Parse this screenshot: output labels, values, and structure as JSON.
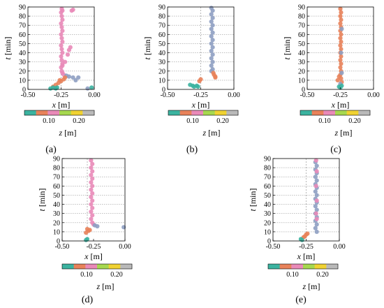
{
  "figure": {
    "colorbar": {
      "label": "z [m]",
      "ticks": [
        "0.10",
        "0.20"
      ],
      "colors": [
        "#3bb3a0",
        "#e8825a",
        "#e98ab8",
        "#a6d84f",
        "#f0d232",
        "#b9b9b9"
      ]
    },
    "x_axis_label": "x [m]",
    "y_axis_label": "t [min]"
  },
  "chart_data": [
    {
      "type": "scatter",
      "panel_label": "(a)",
      "xlabel": "x [m]",
      "ylabel": "t [min]",
      "xlim": [
        -0.5,
        0.0
      ],
      "ylim": [
        0,
        90
      ],
      "xticks": [
        "-0.50",
        "-0.25",
        "0.00"
      ],
      "yticks": [
        "0",
        "10",
        "20",
        "30",
        "40",
        "50",
        "60",
        "70",
        "80",
        "90"
      ],
      "grid": "horizontal dotted",
      "dashed_vline_x": -0.25,
      "series": [
        {
          "color": "#e98ab8",
          "points": [
            [
              -0.245,
              88
            ],
            [
              -0.24,
              86
            ],
            [
              -0.25,
              84
            ],
            [
              -0.245,
              80
            ],
            [
              -0.24,
              76
            ],
            [
              -0.25,
              72
            ],
            [
              -0.245,
              68
            ],
            [
              -0.24,
              64
            ],
            [
              -0.25,
              60
            ],
            [
              -0.245,
              56
            ],
            [
              -0.24,
              52
            ],
            [
              -0.25,
              48
            ],
            [
              -0.245,
              44
            ],
            [
              -0.24,
              40
            ],
            [
              -0.25,
              36
            ],
            [
              -0.245,
              32
            ],
            [
              -0.24,
              28
            ],
            [
              -0.25,
              24
            ],
            [
              -0.245,
              20
            ],
            [
              -0.24,
              18
            ],
            [
              -0.23,
              16
            ],
            [
              -0.16,
              87
            ],
            [
              -0.17,
              86
            ],
            [
              -0.18,
              46
            ],
            [
              -0.19,
              43
            ],
            [
              -0.2,
              38
            ],
            [
              -0.22,
              30
            ],
            [
              -0.24,
              26
            ]
          ]
        },
        {
          "color": "#8e9ec2",
          "points": [
            [
              -0.21,
              15
            ],
            [
              -0.19,
              14
            ],
            [
              -0.16,
              13
            ],
            [
              -0.12,
              13
            ],
            [
              -0.14,
              10
            ],
            [
              -0.05,
              1
            ]
          ]
        },
        {
          "color": "#e8825a",
          "points": [
            [
              -0.31,
              3
            ],
            [
              -0.29,
              5
            ],
            [
              -0.27,
              7
            ],
            [
              -0.25,
              9
            ],
            [
              -0.23,
              11
            ],
            [
              -0.22,
              13
            ],
            [
              -0.26,
              10
            ]
          ]
        },
        {
          "color": "#3bb3a0",
          "points": [
            [
              -0.33,
              1
            ],
            [
              -0.31,
              2
            ],
            [
              -0.29,
              1
            ],
            [
              -0.28,
              2
            ],
            [
              -0.02,
              2
            ]
          ]
        }
      ]
    },
    {
      "type": "scatter",
      "panel_label": "(b)",
      "xlabel": "x [m]",
      "ylabel": "t [min]",
      "xlim": [
        -0.5,
        0.0
      ],
      "ylim": [
        0,
        90
      ],
      "xticks": [
        "-0.50",
        "-0.25",
        "0.00"
      ],
      "yticks": [
        "0",
        "10",
        "20",
        "30",
        "40",
        "50",
        "60",
        "70",
        "80",
        "90"
      ],
      "grid": "horizontal dotted",
      "dashed_vline_x": -0.25,
      "series": [
        {
          "color": "#8e9ec2",
          "points": [
            [
              -0.17,
              89
            ],
            [
              -0.16,
              86
            ],
            [
              -0.17,
              82
            ],
            [
              -0.16,
              78
            ],
            [
              -0.17,
              74
            ],
            [
              -0.16,
              70
            ],
            [
              -0.17,
              66
            ],
            [
              -0.16,
              62
            ],
            [
              -0.17,
              58
            ],
            [
              -0.16,
              54
            ],
            [
              -0.17,
              50
            ],
            [
              -0.16,
              46
            ],
            [
              -0.17,
              42
            ],
            [
              -0.16,
              38
            ],
            [
              -0.17,
              34
            ],
            [
              -0.16,
              30
            ],
            [
              -0.17,
              26
            ],
            [
              -0.16,
              22
            ],
            [
              -0.17,
              20
            ]
          ]
        },
        {
          "color": "#e8825a",
          "points": [
            [
              -0.155,
              18
            ],
            [
              -0.15,
              16
            ],
            [
              -0.14,
              14
            ],
            [
              -0.14,
              13
            ],
            [
              -0.25,
              11
            ],
            [
              -0.26,
              9
            ]
          ]
        },
        {
          "color": "#3bb3a0",
          "points": [
            [
              -0.33,
              5
            ],
            [
              -0.31,
              4
            ],
            [
              -0.3,
              3
            ],
            [
              -0.28,
              4
            ],
            [
              -0.27,
              3
            ]
          ]
        }
      ]
    },
    {
      "type": "scatter",
      "panel_label": "(c)",
      "xlabel": "x [m]",
      "ylabel": "t [min]",
      "xlim": [
        -0.5,
        0.0
      ],
      "ylim": [
        0,
        90
      ],
      "xticks": [
        "-0.50",
        "-0.25",
        "0.00"
      ],
      "yticks": [
        "0",
        "10",
        "20",
        "30",
        "40",
        "50",
        "60",
        "70",
        "80",
        "90"
      ],
      "grid": "horizontal dotted",
      "dashed_vline_x": -0.25,
      "series": [
        {
          "color": "#e8825a",
          "points": [
            [
              -0.25,
              88
            ],
            [
              -0.245,
              84
            ],
            [
              -0.25,
              80
            ],
            [
              -0.245,
              76
            ],
            [
              -0.25,
              72
            ],
            [
              -0.245,
              68
            ],
            [
              -0.25,
              64
            ],
            [
              -0.245,
              60
            ],
            [
              -0.25,
              56
            ],
            [
              -0.245,
              52
            ],
            [
              -0.25,
              48
            ],
            [
              -0.245,
              44
            ],
            [
              -0.25,
              40
            ],
            [
              -0.245,
              36
            ],
            [
              -0.25,
              32
            ],
            [
              -0.245,
              28
            ],
            [
              -0.25,
              24
            ],
            [
              -0.245,
              20
            ],
            [
              -0.25,
              16
            ],
            [
              -0.245,
              12
            ],
            [
              -0.24,
              8
            ],
            [
              -0.26,
              14
            ],
            [
              -0.27,
              10
            ]
          ]
        },
        {
          "color": "#8e9ec2",
          "points": [
            [
              -0.24,
              66
            ],
            [
              -0.245,
              40
            ],
            [
              -0.24,
              18
            ],
            [
              -0.25,
              6
            ]
          ]
        },
        {
          "color": "#3bb3a0",
          "points": [
            [
              -0.26,
              3
            ],
            [
              -0.24,
              4
            ],
            [
              -0.25,
              2
            ]
          ]
        }
      ]
    },
    {
      "type": "scatter",
      "panel_label": "(d)",
      "xlabel": "x [m]",
      "ylabel": "t [min]",
      "xlim": [
        -0.5,
        0.0
      ],
      "ylim": [
        0,
        90
      ],
      "xticks": [
        "-0.50",
        "-0.25",
        "0.00"
      ],
      "yticks": [
        "0",
        "10",
        "20",
        "30",
        "40",
        "50",
        "60",
        "70",
        "80",
        "90"
      ],
      "grid": "horizontal dotted",
      "dashed_vline_x": -0.3,
      "series": [
        {
          "color": "#e98ab8",
          "points": [
            [
              -0.27,
              88
            ],
            [
              -0.26,
              84
            ],
            [
              -0.27,
              80
            ],
            [
              -0.26,
              76
            ],
            [
              -0.27,
              72
            ],
            [
              -0.26,
              68
            ],
            [
              -0.27,
              64
            ],
            [
              -0.26,
              60
            ],
            [
              -0.27,
              56
            ],
            [
              -0.26,
              52
            ],
            [
              -0.27,
              48
            ],
            [
              -0.26,
              44
            ],
            [
              -0.27,
              40
            ],
            [
              -0.26,
              36
            ],
            [
              -0.27,
              32
            ],
            [
              -0.26,
              28
            ],
            [
              -0.27,
              24
            ],
            [
              -0.26,
              20
            ],
            [
              -0.25,
              18
            ]
          ]
        },
        {
          "color": "#8e9ec2",
          "points": [
            [
              -0.24,
              17
            ],
            [
              -0.22,
              16
            ],
            [
              -0.01,
              15
            ]
          ]
        },
        {
          "color": "#e8825a",
          "points": [
            [
              -0.3,
              13
            ],
            [
              -0.29,
              11
            ],
            [
              -0.28,
              12
            ],
            [
              -0.31,
              9
            ]
          ]
        },
        {
          "color": "#3bb3a0",
          "points": [
            [
              -0.31,
              1
            ],
            [
              -0.3,
              2
            ]
          ]
        }
      ]
    },
    {
      "type": "scatter",
      "panel_label": "(e)",
      "xlabel": "x [m]",
      "ylabel": "t [min]",
      "xlim": [
        -0.5,
        0.0
      ],
      "ylim": [
        0,
        90
      ],
      "xticks": [
        "-0.50",
        "-0.25",
        "0.00"
      ],
      "yticks": [
        "0",
        "10",
        "20",
        "30",
        "40",
        "50",
        "60",
        "70",
        "80",
        "90"
      ],
      "grid": "horizontal dotted",
      "dashed_vline_x": -0.25,
      "series": [
        {
          "color": "#8e9ec2",
          "points": [
            [
              -0.18,
              86
            ],
            [
              -0.17,
              82
            ],
            [
              -0.18,
              78
            ],
            [
              -0.17,
              74
            ],
            [
              -0.18,
              70
            ],
            [
              -0.17,
              66
            ],
            [
              -0.18,
              62
            ],
            [
              -0.17,
              58
            ],
            [
              -0.18,
              54
            ],
            [
              -0.17,
              50
            ],
            [
              -0.18,
              46
            ],
            [
              -0.17,
              42
            ],
            [
              -0.18,
              38
            ],
            [
              -0.17,
              34
            ],
            [
              -0.18,
              30
            ],
            [
              -0.17,
              26
            ],
            [
              -0.18,
              22
            ],
            [
              -0.17,
              18
            ],
            [
              -0.18,
              14
            ],
            [
              -0.17,
              10
            ]
          ]
        },
        {
          "color": "#e98ab8",
          "points": [
            [
              -0.175,
              88
            ],
            [
              -0.17,
              76
            ],
            [
              -0.175,
              60
            ],
            [
              -0.17,
              44
            ],
            [
              -0.175,
              30
            ],
            [
              -0.17,
              24
            ]
          ]
        },
        {
          "color": "#e8825a",
          "points": [
            [
              -0.25,
              7
            ],
            [
              -0.24,
              8
            ],
            [
              -0.26,
              5
            ],
            [
              -0.27,
              4
            ]
          ]
        },
        {
          "color": "#3bb3a0",
          "points": [
            [
              -0.29,
              2
            ],
            [
              -0.28,
              1
            ]
          ]
        }
      ]
    }
  ]
}
